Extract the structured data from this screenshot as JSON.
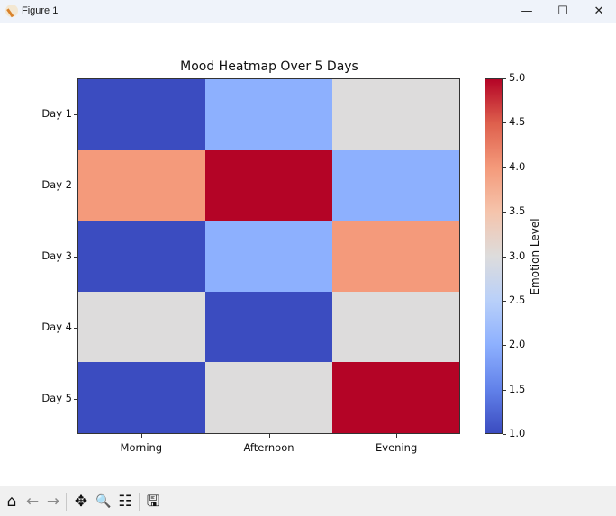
{
  "window": {
    "title": "Figure 1",
    "controls": {
      "minimize": "—",
      "maximize": "☐",
      "close": "✕"
    }
  },
  "toolbar": {
    "items": [
      {
        "name": "home-icon",
        "glyph": "⌂"
      },
      {
        "name": "back-icon",
        "glyph": "←"
      },
      {
        "name": "forward-icon",
        "glyph": "→"
      },
      {
        "name": "pan-icon",
        "glyph": "✥"
      },
      {
        "name": "zoom-icon",
        "glyph": "🔍"
      },
      {
        "name": "configure-subplots-icon",
        "glyph": "☷"
      },
      {
        "name": "save-icon",
        "glyph": "🖫"
      }
    ]
  },
  "chart_data": {
    "type": "heatmap",
    "title": "Mood Heatmap Over 5 Days",
    "xlabel": "",
    "ylabel": "",
    "x_categories": [
      "Morning",
      "Afternoon",
      "Evening"
    ],
    "y_categories": [
      "Day 1",
      "Day 2",
      "Day 3",
      "Day 4",
      "Day 5"
    ],
    "values": [
      [
        1,
        2,
        3
      ],
      [
        4,
        5,
        2
      ],
      [
        1,
        2,
        4
      ],
      [
        3,
        1,
        3
      ],
      [
        1,
        3,
        5
      ]
    ],
    "colormap": "coolwarm",
    "vmin": 1.0,
    "vmax": 5.0,
    "colorbar": {
      "label": "Emotion Level",
      "ticks": [
        "1.0",
        "1.5",
        "2.0",
        "2.5",
        "3.0",
        "3.5",
        "4.0",
        "4.5",
        "5.0"
      ]
    },
    "value_colors": {
      "1": "#3b4cc0",
      "2": "#8db0fe",
      "3": "#dddcdc",
      "4": "#f49a7b",
      "5": "#b40426"
    }
  }
}
